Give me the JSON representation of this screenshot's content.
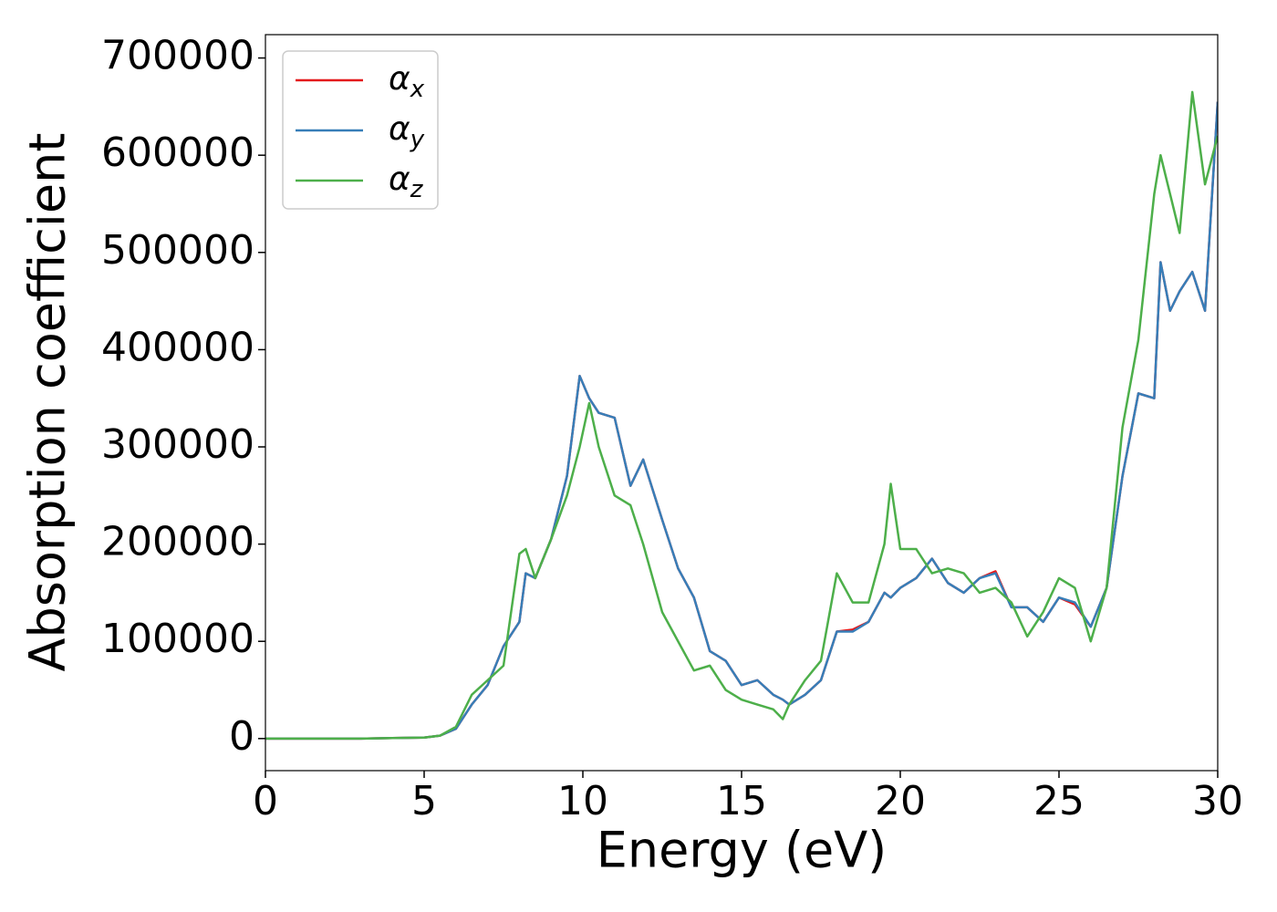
{
  "chart_data": {
    "type": "line",
    "xlabel": "Energy (eV)",
    "ylabel": "Absorption coefficient",
    "x": [
      0,
      1,
      2,
      3,
      4,
      5,
      5.5,
      6,
      6.5,
      7,
      7.5,
      8,
      8.2,
      8.5,
      9,
      9.5,
      9.9,
      10.2,
      10.5,
      11,
      11.5,
      11.9,
      12.5,
      13,
      13.5,
      14,
      14.5,
      15,
      15.5,
      16,
      16.3,
      16.5,
      17,
      17.5,
      18,
      18.5,
      19,
      19.5,
      19.7,
      20,
      20.5,
      21,
      21.5,
      22,
      22.5,
      23,
      23.5,
      24,
      24.5,
      25,
      25.5,
      26,
      26.5,
      27,
      27.5,
      28,
      28.2,
      28.5,
      28.8,
      29.2,
      29.6,
      30
    ],
    "series": [
      {
        "name": "αx",
        "color": "#e41a1c",
        "values": [
          0,
          0,
          0,
          0,
          500,
          1000,
          3000,
          10000,
          35000,
          55000,
          95000,
          120000,
          170000,
          165000,
          205000,
          270000,
          373000,
          350000,
          335000,
          330000,
          260000,
          287000,
          225000,
          175000,
          145000,
          90000,
          80000,
          55000,
          60000,
          45000,
          40000,
          35000,
          45000,
          60000,
          110000,
          112000,
          120000,
          150000,
          145000,
          155000,
          165000,
          185000,
          160000,
          150000,
          165000,
          172000,
          135000,
          135000,
          120000,
          145000,
          138000,
          115000,
          155000,
          270000,
          355000,
          350000,
          490000,
          440000,
          460000,
          480000,
          440000,
          655000
        ]
      },
      {
        "name": "αy",
        "color": "#377eb8",
        "values": [
          0,
          0,
          0,
          0,
          500,
          1000,
          3000,
          10000,
          35000,
          55000,
          95000,
          120000,
          170000,
          165000,
          205000,
          270000,
          373000,
          350000,
          335000,
          330000,
          260000,
          287000,
          225000,
          175000,
          145000,
          90000,
          80000,
          55000,
          60000,
          45000,
          40000,
          35000,
          45000,
          60000,
          110000,
          110000,
          120000,
          150000,
          145000,
          155000,
          165000,
          185000,
          160000,
          150000,
          165000,
          170000,
          135000,
          135000,
          120000,
          145000,
          140000,
          115000,
          155000,
          270000,
          355000,
          350000,
          490000,
          440000,
          460000,
          480000,
          440000,
          655000
        ]
      },
      {
        "name": "αz",
        "color": "#4daf4a",
        "values": [
          0,
          0,
          0,
          0,
          500,
          1000,
          3000,
          12000,
          45000,
          60000,
          75000,
          190000,
          195000,
          165000,
          205000,
          250000,
          300000,
          345000,
          300000,
          250000,
          240000,
          200000,
          130000,
          100000,
          70000,
          75000,
          50000,
          40000,
          35000,
          30000,
          20000,
          35000,
          60000,
          80000,
          170000,
          140000,
          140000,
          200000,
          262000,
          195000,
          195000,
          170000,
          175000,
          170000,
          150000,
          155000,
          140000,
          105000,
          130000,
          165000,
          155000,
          100000,
          155000,
          320000,
          410000,
          560000,
          600000,
          560000,
          520000,
          665000,
          570000,
          620000
        ]
      }
    ],
    "xlim": [
      0,
      30
    ],
    "xticks": [
      0,
      5,
      10,
      15,
      20,
      25,
      30
    ],
    "ylim": [
      -33000,
      724000
    ],
    "yticks": [
      0,
      100000,
      200000,
      300000,
      400000,
      500000,
      600000,
      700000
    ],
    "grid": false,
    "legend": "upper left"
  }
}
